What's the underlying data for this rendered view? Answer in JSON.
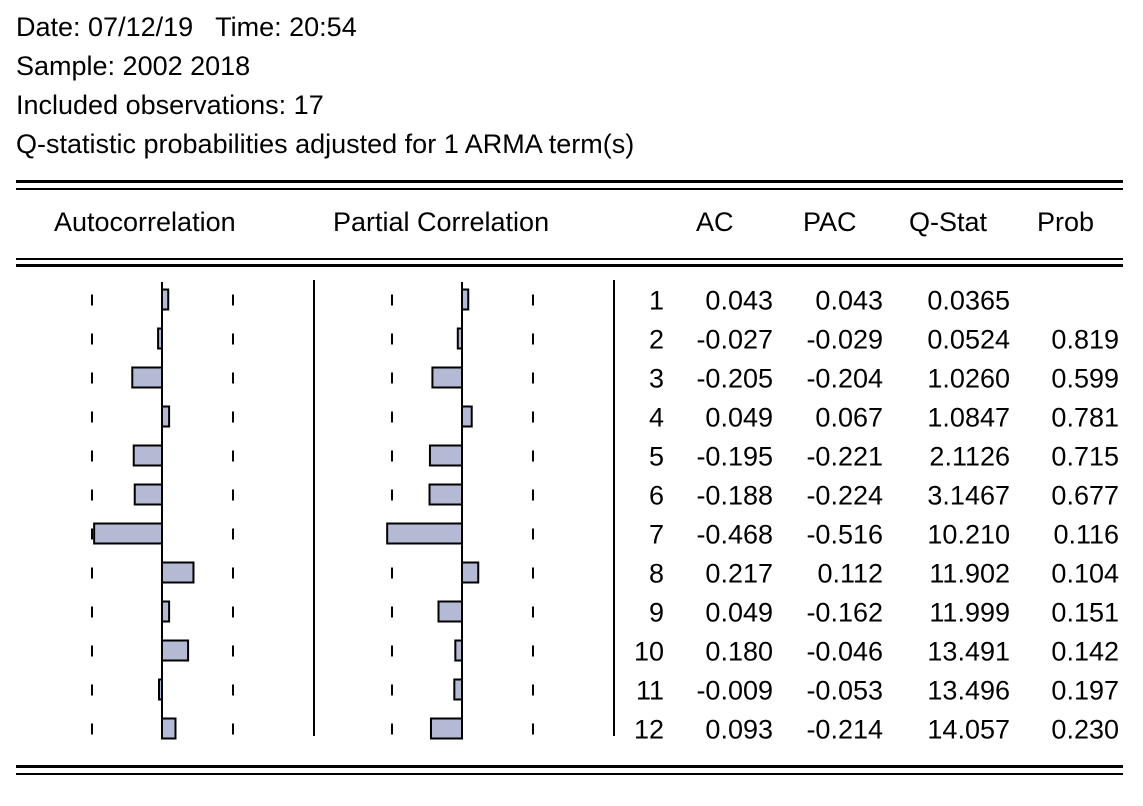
{
  "header": {
    "date_line": "Date: 07/12/19   Time: 20:54",
    "sample_line": "Sample: 2002 2018",
    "obs_line": "Included observations: 17",
    "q_line": "Q-statistic probabilities adjusted for 1 ARMA term(s)"
  },
  "columns": {
    "autocorrelation": "Autocorrelation",
    "partial": "Partial Correlation",
    "ac": "AC",
    "pac": "PAC",
    "qstat": "Q-Stat",
    "prob": "Prob"
  },
  "colors": {
    "bar_fill": "#b4b9d4",
    "bar_stroke": "#000000"
  },
  "chart_data": {
    "type": "table",
    "lags": [
      "1",
      "2",
      "3",
      "4",
      "5",
      "6",
      "7",
      "8",
      "9",
      "10",
      "11",
      "12"
    ],
    "ac": [
      0.043,
      -0.027,
      -0.205,
      0.049,
      -0.195,
      -0.188,
      -0.468,
      0.217,
      0.049,
      0.18,
      -0.009,
      0.093
    ],
    "pac": [
      0.043,
      -0.029,
      -0.204,
      0.067,
      -0.221,
      -0.224,
      -0.516,
      0.112,
      -0.162,
      -0.046,
      -0.053,
      -0.214
    ],
    "ac_text": [
      "0.043",
      "-0.027",
      "-0.205",
      "0.049",
      "-0.195",
      "-0.188",
      "-0.468",
      "0.217",
      "0.049",
      "0.180",
      "-0.009",
      "0.093"
    ],
    "pac_text": [
      "0.043",
      "-0.029",
      "-0.204",
      "0.067",
      "-0.221",
      "-0.224",
      "-0.516",
      "0.112",
      "-0.162",
      "-0.046",
      "-0.053",
      "-0.214"
    ],
    "qstat": [
      "0.0365",
      "0.0524",
      "1.0260",
      "1.0847",
      "2.1126",
      "3.1467",
      "10.210",
      "11.902",
      "11.999",
      "13.491",
      "13.496",
      "14.057"
    ],
    "prob": [
      "",
      "0.819",
      "0.599",
      "0.781",
      "0.715",
      "0.677",
      "0.116",
      "0.104",
      "0.151",
      "0.142",
      "0.197",
      "0.230"
    ]
  }
}
